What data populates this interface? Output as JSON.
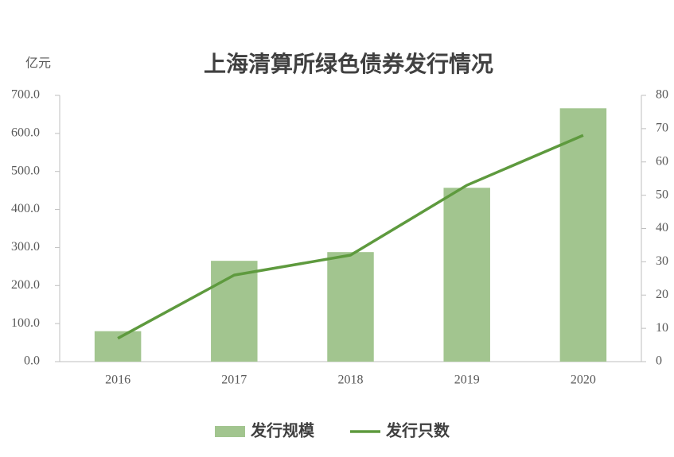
{
  "chart_data": {
    "type": "combo",
    "title": "上海清算所绿色债券发行情况",
    "y_label": "亿元",
    "categories": [
      "2016",
      "2017",
      "2018",
      "2019",
      "2020"
    ],
    "series": [
      {
        "name": "发行规模",
        "type": "bar",
        "color": "#a2c58f",
        "values": [
          80,
          265,
          288,
          457,
          666
        ]
      },
      {
        "name": "发行只数",
        "type": "line",
        "axis": "y2",
        "color": "#5e9a3e",
        "values": [
          7,
          26,
          32,
          53,
          68
        ]
      }
    ],
    "ylim": [
      0,
      700
    ],
    "yticks": [
      {
        "value": 0,
        "label": "0.0"
      },
      {
        "value": 100,
        "label": "100.0"
      },
      {
        "value": 200,
        "label": "200.0"
      },
      {
        "value": 300,
        "label": "300.0"
      },
      {
        "value": 400,
        "label": "400.0"
      },
      {
        "value": 500,
        "label": "500.0"
      },
      {
        "value": 600,
        "label": "600.0"
      },
      {
        "value": 700,
        "label": "700.0"
      }
    ],
    "y2lim": [
      0,
      80
    ],
    "y2ticks": [
      0,
      10,
      20,
      30,
      40,
      50,
      60,
      70,
      80
    ],
    "legend": "bottom",
    "grid": false
  }
}
